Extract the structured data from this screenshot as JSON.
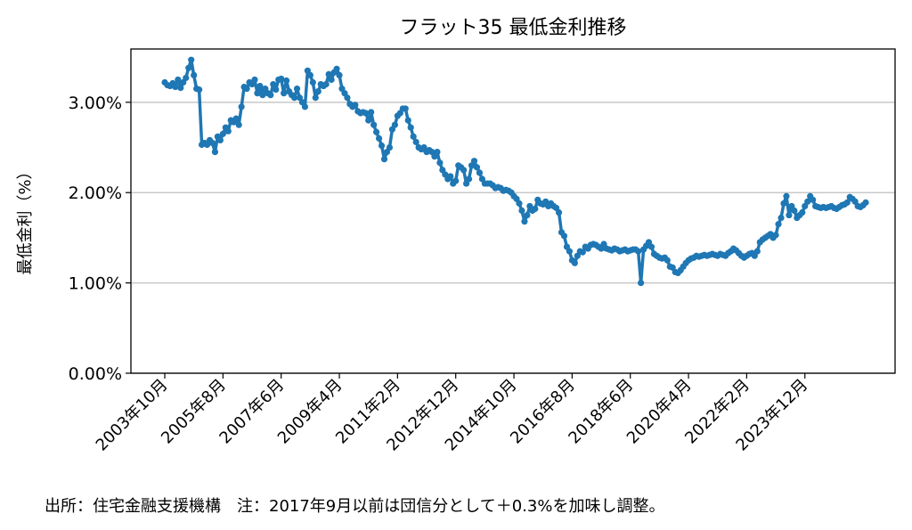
{
  "chart_data": {
    "type": "line",
    "title": "フラット35 最低金利推移",
    "y_label": "最低金利（%）",
    "footnote": "出所：住宅金融支援機構　注：2017年9月以前は団信分として＋0.3%を加味し調整。",
    "categories": [
      "2003年10月",
      null,
      null,
      null,
      null,
      null,
      null,
      null,
      null,
      null,
      null,
      null,
      null,
      null,
      null,
      null,
      null,
      null,
      null,
      null,
      null,
      null,
      "2005年8月",
      null,
      null,
      null,
      null,
      null,
      null,
      null,
      null,
      null,
      null,
      null,
      null,
      null,
      null,
      null,
      null,
      null,
      null,
      null,
      null,
      null,
      "2007年6月",
      null,
      null,
      null,
      null,
      null,
      null,
      null,
      null,
      null,
      null,
      null,
      null,
      null,
      null,
      null,
      null,
      null,
      null,
      null,
      null,
      null,
      "2009年4月",
      null,
      null,
      null,
      null,
      null,
      null,
      null,
      null,
      null,
      null,
      null,
      null,
      null,
      null,
      null,
      null,
      null,
      null,
      null,
      null,
      null,
      "2011年2月",
      null,
      null,
      null,
      null,
      null,
      null,
      null,
      null,
      null,
      null,
      null,
      null,
      null,
      null,
      null,
      null,
      null,
      null,
      null,
      null,
      null,
      "2012年12月",
      null,
      null,
      null,
      null,
      null,
      null,
      null,
      null,
      null,
      null,
      null,
      null,
      null,
      null,
      null,
      null,
      null,
      null,
      null,
      null,
      null,
      "2014年10月",
      null,
      null,
      null,
      null,
      null,
      null,
      null,
      null,
      null,
      null,
      null,
      null,
      null,
      null,
      null,
      null,
      null,
      null,
      null,
      null,
      null,
      "2016年8月",
      null,
      null,
      null,
      null,
      null,
      null,
      null,
      null,
      null,
      null,
      null,
      null,
      null,
      null,
      null,
      null,
      null,
      null,
      null,
      null,
      null,
      "2018年6月",
      null,
      null,
      null,
      null,
      null,
      null,
      null,
      null,
      null,
      null,
      null,
      null,
      null,
      null,
      null,
      null,
      null,
      null,
      null,
      null,
      null,
      "2020年4月",
      null,
      null,
      null,
      null,
      null,
      null,
      null,
      null,
      null,
      null,
      null,
      null,
      null,
      null,
      null,
      null,
      null,
      null,
      null,
      null,
      null,
      "2022年2月",
      null,
      null,
      null,
      null,
      null,
      null,
      null,
      null,
      null,
      null,
      null,
      null,
      null,
      null,
      null,
      null,
      null,
      null,
      null,
      null,
      null,
      "2023年12月",
      null,
      null,
      null,
      null,
      null,
      null,
      null,
      null,
      null,
      null,
      null,
      null,
      null,
      null,
      null,
      null,
      null,
      null,
      null,
      null,
      null,
      null,
      null
    ],
    "series": [
      {
        "color": "#1f77b4",
        "values": [
          3.22,
          3.19,
          3.18,
          3.21,
          3.17,
          3.25,
          3.16,
          3.22,
          3.27,
          3.38,
          3.47,
          3.3,
          3.15,
          3.14,
          2.53,
          2.55,
          2.53,
          2.58,
          2.55,
          2.45,
          2.62,
          2.58,
          2.65,
          2.72,
          2.68,
          2.8,
          2.78,
          2.82,
          2.75,
          2.95,
          3.17,
          3.15,
          3.22,
          3.2,
          3.25,
          3.1,
          3.18,
          3.08,
          3.15,
          3.1,
          3.08,
          3.2,
          3.14,
          3.25,
          3.26,
          3.1,
          3.24,
          3.12,
          3.08,
          3.05,
          3.15,
          3.05,
          3.0,
          2.95,
          3.35,
          3.3,
          3.22,
          3.05,
          3.12,
          3.2,
          3.18,
          3.2,
          3.31,
          3.25,
          3.33,
          3.37,
          3.3,
          3.15,
          3.1,
          3.05,
          2.98,
          2.95,
          2.97,
          2.9,
          2.88,
          2.89,
          2.88,
          2.8,
          2.89,
          2.75,
          2.67,
          2.6,
          2.52,
          2.37,
          2.45,
          2.5,
          2.7,
          2.75,
          2.85,
          2.88,
          2.93,
          2.93,
          2.8,
          2.72,
          2.62,
          2.56,
          2.5,
          2.48,
          2.5,
          2.45,
          2.47,
          2.45,
          2.4,
          2.45,
          2.33,
          2.25,
          2.2,
          2.15,
          2.18,
          2.1,
          2.13,
          2.3,
          2.28,
          2.25,
          2.1,
          2.15,
          2.3,
          2.35,
          2.28,
          2.22,
          2.15,
          2.1,
          2.1,
          2.1,
          2.08,
          2.05,
          2.06,
          2.05,
          2.02,
          2.03,
          2.02,
          2.0,
          1.96,
          1.93,
          1.88,
          1.8,
          1.68,
          1.75,
          1.85,
          1.8,
          1.82,
          1.92,
          1.88,
          1.87,
          1.9,
          1.85,
          1.88,
          1.85,
          1.83,
          1.78,
          1.56,
          1.52,
          1.4,
          1.35,
          1.25,
          1.22,
          1.3,
          1.35,
          1.34,
          1.4,
          1.38,
          1.42,
          1.43,
          1.42,
          1.4,
          1.38,
          1.43,
          1.38,
          1.37,
          1.36,
          1.38,
          1.37,
          1.35,
          1.36,
          1.37,
          1.35,
          1.36,
          1.37,
          1.37,
          1.35,
          1.0,
          1.37,
          1.41,
          1.45,
          1.4,
          1.32,
          1.3,
          1.28,
          1.27,
          1.28,
          1.25,
          1.18,
          1.17,
          1.12,
          1.11,
          1.14,
          1.18,
          1.22,
          1.25,
          1.27,
          1.28,
          1.3,
          1.29,
          1.3,
          1.31,
          1.3,
          1.31,
          1.32,
          1.31,
          1.3,
          1.32,
          1.31,
          1.3,
          1.33,
          1.35,
          1.38,
          1.36,
          1.33,
          1.3,
          1.28,
          1.3,
          1.32,
          1.33,
          1.3,
          1.35,
          1.45,
          1.48,
          1.5,
          1.52,
          1.54,
          1.5,
          1.53,
          1.65,
          1.72,
          1.88,
          1.96,
          1.75,
          1.85,
          1.8,
          1.72,
          1.75,
          1.78,
          1.85,
          1.9,
          1.96,
          1.92,
          1.85,
          1.84,
          1.83,
          1.84,
          1.83,
          1.84,
          1.85,
          1.83,
          1.82,
          1.84,
          1.86,
          1.87,
          1.89,
          1.95,
          1.93,
          1.9,
          1.85,
          1.84,
          1.86,
          1.89
        ]
      }
    ],
    "ylim": [
      0,
      3.59
    ],
    "yticks": [
      {
        "value": 0,
        "label": "0.00%"
      },
      {
        "value": 1,
        "label": "1.00%"
      },
      {
        "value": 2,
        "label": "2.00%"
      },
      {
        "value": 3,
        "label": "3.00%"
      }
    ],
    "grid": true
  }
}
